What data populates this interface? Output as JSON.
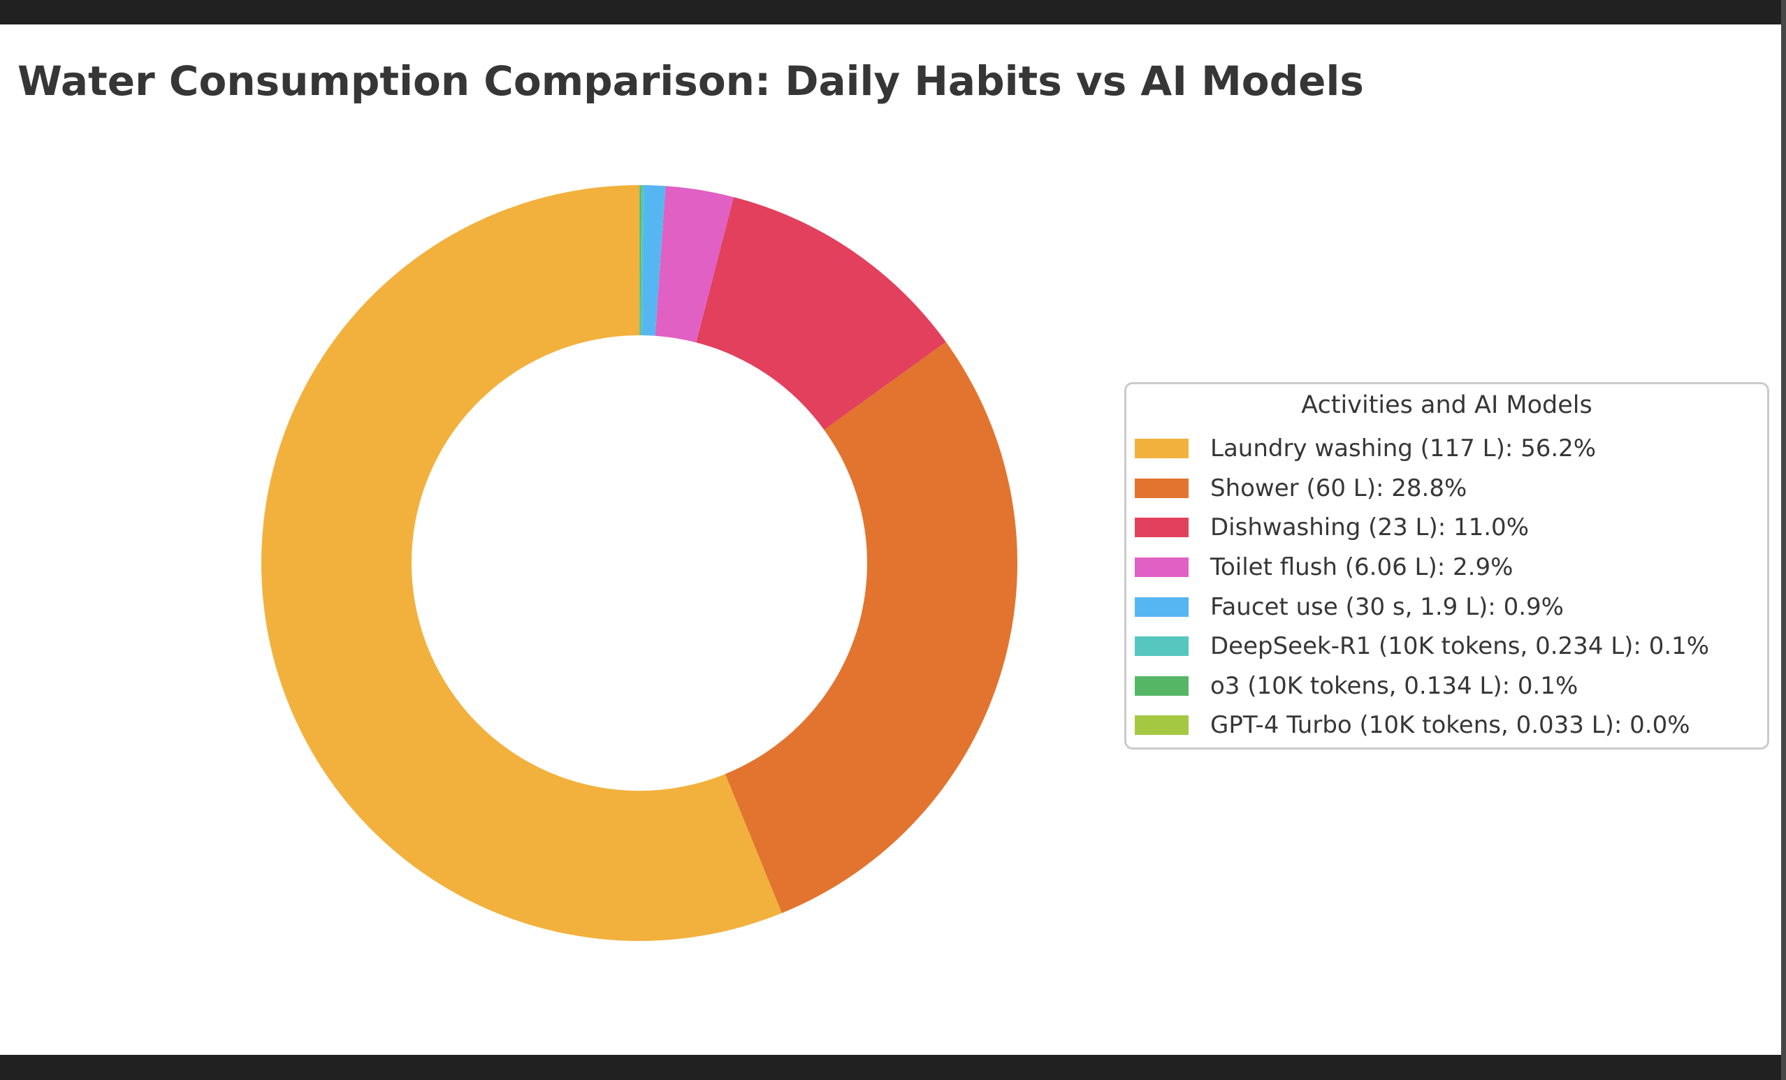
{
  "window": {
    "top_bar_color": "#212121",
    "bottom_bar_color": "#212121",
    "right_edge_color": "#474747"
  },
  "chart_data": {
    "type": "pie",
    "subtype": "donut",
    "title": "Water Consumption Comparison: Daily Habits vs AI Models",
    "start_angle_deg": 90,
    "direction": "counterclockwise",
    "background_color": "#ffffff",
    "title_color": "#363636",
    "legend": {
      "title": "Activities and AI Models",
      "position": "center-right",
      "border_color": "#cbcbcb"
    },
    "segments": [
      {
        "label": "Laundry washing (117 L): 56.2%",
        "activity": "Laundry washing",
        "value": 117,
        "unit": "L",
        "percent": 56.2,
        "color": "#F2B13D"
      },
      {
        "label": "Shower (60 L): 28.8%",
        "activity": "Shower",
        "value": 60,
        "unit": "L",
        "percent": 28.8,
        "color": "#E2742F"
      },
      {
        "label": "Dishwashing (23 L): 11.0%",
        "activity": "Dishwashing",
        "value": 23,
        "unit": "L",
        "percent": 11.0,
        "color": "#E2405C"
      },
      {
        "label": "Toilet flush (6.06 L): 2.9%",
        "activity": "Toilet flush",
        "value": 6.06,
        "unit": "L",
        "percent": 2.9,
        "color": "#E160C4"
      },
      {
        "label": "Faucet use (30 s, 1.9 L): 0.9%",
        "activity": "Faucet use (30 s)",
        "value": 1.9,
        "unit": "L",
        "percent": 0.9,
        "color": "#56B6F2"
      },
      {
        "label": "DeepSeek-R1 (10K tokens, 0.234 L): 0.1%",
        "activity": "DeepSeek-R1 (10K tokens)",
        "value": 0.234,
        "unit": "L",
        "percent": 0.1,
        "color": "#56C6BE"
      },
      {
        "label": "o3 (10K tokens, 0.134 L): 0.1%",
        "activity": "o3 (10K tokens)",
        "value": 0.134,
        "unit": "L",
        "percent": 0.1,
        "color": "#55B766"
      },
      {
        "label": "GPT-4 Turbo (10K tokens, 0.033 L): 0.0%",
        "activity": "GPT-4 Turbo (10K tokens)",
        "value": 0.033,
        "unit": "L",
        "percent": 0.0,
        "color": "#A5C843"
      }
    ]
  }
}
